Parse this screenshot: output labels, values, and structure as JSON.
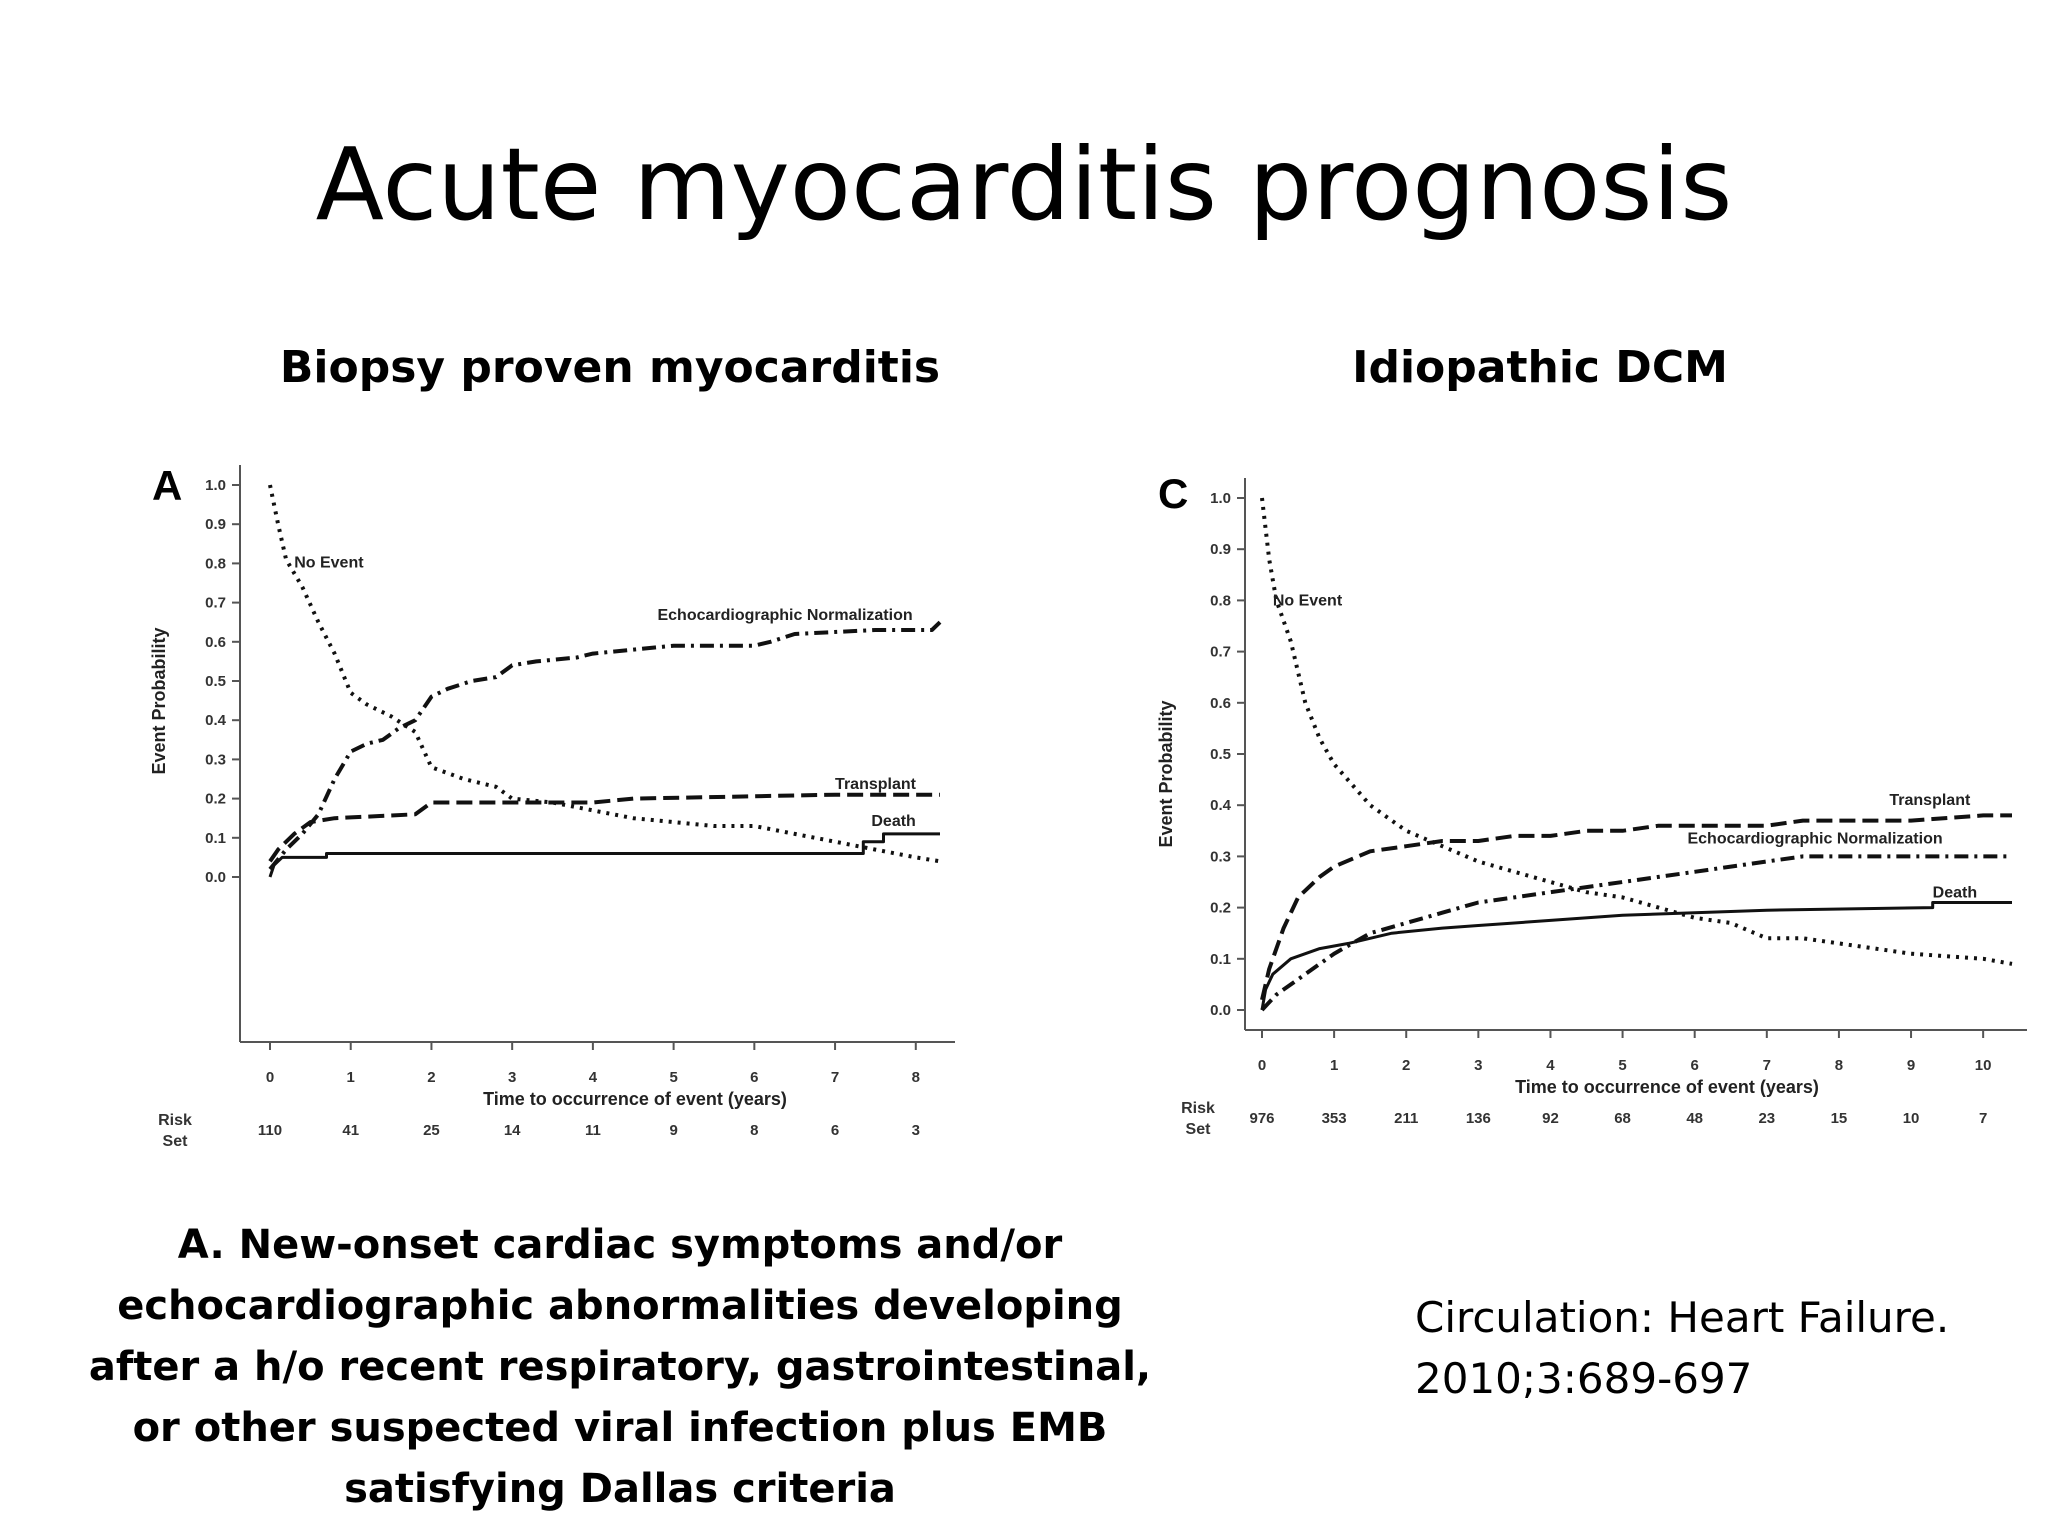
{
  "slide": {
    "title": "Acute myocarditis prognosis",
    "left_heading": "Biopsy proven myocarditis",
    "right_heading": "Idiopathic DCM",
    "caption": "A. New-onset cardiac symptoms and/or echocardiographic abnormalities developing after a h/o recent respiratory, gastrointestinal, or other suspected viral infection plus EMB satisfying Dallas criteria",
    "citation_line1": "Circulation: Heart Failure.",
    "citation_line2": "2010;3:689-697"
  },
  "chart_data": [
    {
      "type": "line",
      "panel_letter": "A",
      "xlabel": "Time to occurrence of event (years)",
      "ylabel": "Event Probability",
      "xlim": [
        0,
        8.3
      ],
      "ylim": [
        0,
        1.0
      ],
      "x_ticks": [
        "0",
        "1",
        "2",
        "3",
        "4",
        "5",
        "6",
        "7",
        "8"
      ],
      "y_ticks": [
        "0.0",
        "0.1",
        "0.2",
        "0.3",
        "0.4",
        "0.5",
        "0.6",
        "0.7",
        "0.8",
        "0.9",
        "1.0"
      ],
      "risk_label": [
        "Risk",
        "Set"
      ],
      "risk_set": [
        "110",
        "41",
        "25",
        "14",
        "11",
        "9",
        "8",
        "6",
        "3"
      ],
      "series": [
        {
          "name": "No Event",
          "style": "dotted",
          "label_x": 0.3,
          "label_y": 0.79,
          "points": [
            [
              0,
              1.0
            ],
            [
              0.1,
              0.9
            ],
            [
              0.2,
              0.81
            ],
            [
              0.4,
              0.74
            ],
            [
              0.6,
              0.65
            ],
            [
              0.8,
              0.57
            ],
            [
              1.0,
              0.47
            ],
            [
              1.2,
              0.44
            ],
            [
              1.5,
              0.41
            ],
            [
              1.8,
              0.37
            ],
            [
              2.0,
              0.28
            ],
            [
              2.4,
              0.25
            ],
            [
              2.8,
              0.23
            ],
            [
              3.0,
              0.2
            ],
            [
              3.5,
              0.19
            ],
            [
              4.0,
              0.17
            ],
            [
              4.5,
              0.15
            ],
            [
              5.0,
              0.14
            ],
            [
              5.5,
              0.13
            ],
            [
              6.0,
              0.13
            ],
            [
              6.5,
              0.11
            ],
            [
              7.0,
              0.09
            ],
            [
              7.5,
              0.07
            ],
            [
              8.0,
              0.05
            ],
            [
              8.3,
              0.04
            ]
          ]
        },
        {
          "name": "Echocardiographic Normalization",
          "style": "dashdot",
          "label_x": 4.8,
          "label_y": 0.655,
          "points": [
            [
              0,
              0.02
            ],
            [
              0.2,
              0.07
            ],
            [
              0.4,
              0.11
            ],
            [
              0.6,
              0.16
            ],
            [
              0.8,
              0.25
            ],
            [
              1.0,
              0.32
            ],
            [
              1.2,
              0.34
            ],
            [
              1.4,
              0.35
            ],
            [
              1.6,
              0.38
            ],
            [
              1.8,
              0.4
            ],
            [
              2.0,
              0.46
            ],
            [
              2.2,
              0.48
            ],
            [
              2.5,
              0.5
            ],
            [
              2.8,
              0.51
            ],
            [
              3.0,
              0.54
            ],
            [
              3.3,
              0.55
            ],
            [
              3.8,
              0.56
            ],
            [
              4.0,
              0.57
            ],
            [
              4.5,
              0.58
            ],
            [
              5.0,
              0.59
            ],
            [
              6.0,
              0.59
            ],
            [
              6.2,
              0.6
            ],
            [
              6.5,
              0.62
            ],
            [
              7.5,
              0.63
            ],
            [
              8.2,
              0.63
            ],
            [
              8.3,
              0.65
            ]
          ]
        },
        {
          "name": "Transplant",
          "style": "dashed",
          "label_x": 7.0,
          "label_y": 0.225,
          "points": [
            [
              0,
              0.04
            ],
            [
              0.1,
              0.07
            ],
            [
              0.3,
              0.11
            ],
            [
              0.5,
              0.14
            ],
            [
              0.8,
              0.15
            ],
            [
              1.8,
              0.16
            ],
            [
              2.0,
              0.19
            ],
            [
              3.0,
              0.19
            ],
            [
              4.0,
              0.19
            ],
            [
              4.5,
              0.2
            ],
            [
              7.0,
              0.21
            ],
            [
              8.3,
              0.21
            ]
          ]
        },
        {
          "name": "Death",
          "style": "solid",
          "label_x": 7.45,
          "label_y": 0.13,
          "points": [
            [
              0,
              0.0
            ],
            [
              0.05,
              0.03
            ],
            [
              0.15,
              0.05
            ],
            [
              0.7,
              0.05
            ],
            [
              0.7,
              0.06
            ],
            [
              7.35,
              0.06
            ],
            [
              7.35,
              0.09
            ],
            [
              7.6,
              0.09
            ],
            [
              7.6,
              0.11
            ],
            [
              8.3,
              0.11
            ]
          ]
        }
      ]
    },
    {
      "type": "line",
      "panel_letter": "C",
      "xlabel": "Time to occurrence of event (years)",
      "ylabel": "Event Probability",
      "xlim": [
        0,
        10.4
      ],
      "ylim": [
        0,
        1.0
      ],
      "x_ticks": [
        "0",
        "1",
        "2",
        "3",
        "4",
        "5",
        "6",
        "7",
        "8",
        "9",
        "10"
      ],
      "y_ticks": [
        "0.0",
        "0.1",
        "0.2",
        "0.3",
        "0.4",
        "0.5",
        "0.6",
        "0.7",
        "0.8",
        "0.9",
        "1.0"
      ],
      "risk_label": [
        "Risk",
        "Set"
      ],
      "risk_set": [
        "976",
        "353",
        "211",
        "136",
        "92",
        "68",
        "48",
        "23",
        "15",
        "10",
        "7"
      ],
      "series": [
        {
          "name": "No Event",
          "style": "dotted",
          "label_x": 0.15,
          "label_y": 0.79,
          "points": [
            [
              0,
              1.0
            ],
            [
              0.1,
              0.88
            ],
            [
              0.2,
              0.8
            ],
            [
              0.4,
              0.72
            ],
            [
              0.6,
              0.6
            ],
            [
              0.8,
              0.53
            ],
            [
              1.0,
              0.48
            ],
            [
              1.5,
              0.4
            ],
            [
              2.0,
              0.35
            ],
            [
              2.5,
              0.32
            ],
            [
              3.0,
              0.29
            ],
            [
              3.5,
              0.27
            ],
            [
              4.0,
              0.25
            ],
            [
              4.5,
              0.23
            ],
            [
              5.0,
              0.22
            ],
            [
              5.5,
              0.2
            ],
            [
              6.0,
              0.18
            ],
            [
              6.5,
              0.17
            ],
            [
              7.0,
              0.14
            ],
            [
              7.5,
              0.14
            ],
            [
              8.0,
              0.13
            ],
            [
              9.0,
              0.11
            ],
            [
              10.0,
              0.1
            ],
            [
              10.4,
              0.09
            ]
          ]
        },
        {
          "name": "Transplant",
          "style": "dashed",
          "label_x": 8.7,
          "label_y": 0.4,
          "points": [
            [
              0,
              0.02
            ],
            [
              0.1,
              0.08
            ],
            [
              0.3,
              0.16
            ],
            [
              0.5,
              0.22
            ],
            [
              0.8,
              0.26
            ],
            [
              1.0,
              0.28
            ],
            [
              1.5,
              0.31
            ],
            [
              2.0,
              0.32
            ],
            [
              2.5,
              0.33
            ],
            [
              3.0,
              0.33
            ],
            [
              3.5,
              0.34
            ],
            [
              4.0,
              0.34
            ],
            [
              4.5,
              0.35
            ],
            [
              5.0,
              0.35
            ],
            [
              5.5,
              0.36
            ],
            [
              6.0,
              0.36
            ],
            [
              7.0,
              0.36
            ],
            [
              7.5,
              0.37
            ],
            [
              9.0,
              0.37
            ],
            [
              10.0,
              0.38
            ],
            [
              10.4,
              0.38
            ]
          ]
        },
        {
          "name": "Echocardiographic Normalization",
          "style": "dashdot",
          "label_x": 5.9,
          "label_y": 0.325,
          "points": [
            [
              0,
              0.0
            ],
            [
              0.2,
              0.03
            ],
            [
              0.5,
              0.06
            ],
            [
              1.0,
              0.11
            ],
            [
              1.5,
              0.15
            ],
            [
              2.0,
              0.17
            ],
            [
              2.5,
              0.19
            ],
            [
              3.0,
              0.21
            ],
            [
              3.5,
              0.22
            ],
            [
              4.0,
              0.23
            ],
            [
              4.5,
              0.24
            ],
            [
              5.0,
              0.25
            ],
            [
              5.5,
              0.26
            ],
            [
              6.0,
              0.27
            ],
            [
              6.5,
              0.28
            ],
            [
              7.0,
              0.29
            ],
            [
              7.5,
              0.3
            ],
            [
              8.5,
              0.3
            ],
            [
              9.0,
              0.3
            ],
            [
              10.4,
              0.3
            ]
          ]
        },
        {
          "name": "Death",
          "style": "solid",
          "label_x": 9.3,
          "label_y": 0.22,
          "points": [
            [
              0,
              0.0
            ],
            [
              0.05,
              0.04
            ],
            [
              0.15,
              0.07
            ],
            [
              0.4,
              0.1
            ],
            [
              0.8,
              0.12
            ],
            [
              1.2,
              0.13
            ],
            [
              1.8,
              0.15
            ],
            [
              2.5,
              0.16
            ],
            [
              3.0,
              0.165
            ],
            [
              3.5,
              0.17
            ],
            [
              4.0,
              0.175
            ],
            [
              5.0,
              0.185
            ],
            [
              6.0,
              0.19
            ],
            [
              7.0,
              0.195
            ],
            [
              9.3,
              0.2
            ],
            [
              9.3,
              0.21
            ],
            [
              10.4,
              0.21
            ]
          ]
        }
      ]
    }
  ]
}
